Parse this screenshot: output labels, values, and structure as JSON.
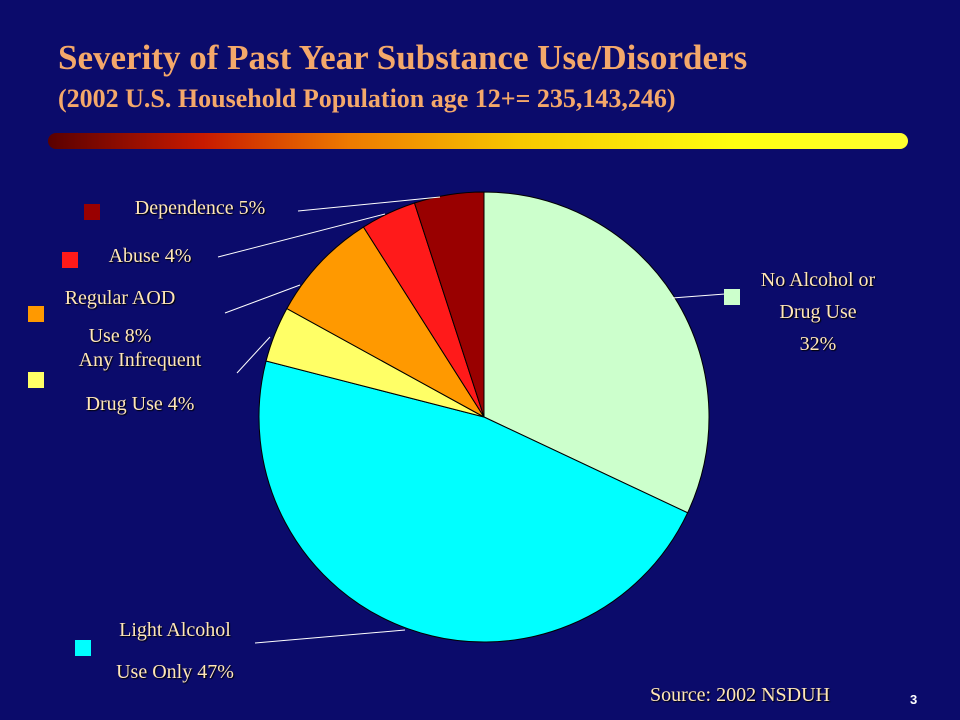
{
  "title": "Severity of Past Year Substance Use/Disorders",
  "subtitle": "(2002 U.S. Household Population age 12+= 235,143,246)",
  "source": "Source: 2002 NSDUH",
  "slide_number": "3",
  "chart_data": {
    "type": "pie",
    "title": "",
    "start_angle_deg": 0,
    "direction": "clockwise",
    "slices": [
      {
        "label_lines": [
          "No Alcohol or",
          "Drug Use",
          "32%"
        ],
        "value": 32,
        "color": "#ccffcc"
      },
      {
        "label_lines": [
          "Light Alcohol",
          "Use Only 47%"
        ],
        "value": 47,
        "color": "#00ffff"
      },
      {
        "label_lines": [
          "Any Infrequent",
          "Drug Use 4%"
        ],
        "value": 4,
        "color": "#ffff66"
      },
      {
        "label_lines": [
          "Regular AOD",
          "Use 8%"
        ],
        "value": 8,
        "color": "#ff9900"
      },
      {
        "label_lines": [
          "Abuse 4%"
        ],
        "value": 4,
        "color": "#ff1a1a"
      },
      {
        "label_lines": [
          "Dependence 5%"
        ],
        "value": 5,
        "color": "#990000"
      }
    ]
  }
}
